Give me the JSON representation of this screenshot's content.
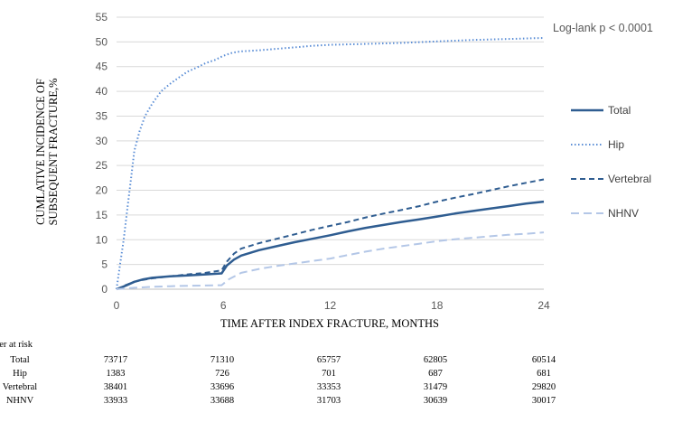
{
  "chart_data": {
    "type": "line",
    "title": "",
    "xlabel": "TIME AFTER INDEX FRACTURE, MONTHS",
    "ylabel": [
      "CUMLATIVE INCIDENCE OF",
      "SUBSEQUENT FRACTURE,%"
    ],
    "xlim": [
      0,
      24
    ],
    "ylim": [
      0,
      55
    ],
    "xticks": [
      0,
      6,
      12,
      18,
      24
    ],
    "yticks": [
      0,
      5,
      10,
      15,
      20,
      25,
      30,
      35,
      40,
      45,
      50,
      55
    ],
    "grid": "horizontal",
    "legend_position": "right",
    "annotation": "Log-lank p < 0.0001",
    "series": [
      {
        "name": "Total",
        "style": "solid",
        "color": "#2f5d91",
        "points": [
          [
            0,
            0
          ],
          [
            0.5,
            0.7
          ],
          [
            1,
            1.5
          ],
          [
            1.5,
            2.0
          ],
          [
            2,
            2.3
          ],
          [
            3,
            2.6
          ],
          [
            4,
            2.8
          ],
          [
            5,
            3.0
          ],
          [
            5.9,
            3.2
          ],
          [
            6.2,
            4.8
          ],
          [
            6.6,
            6.0
          ],
          [
            7,
            6.8
          ],
          [
            8,
            7.9
          ],
          [
            9,
            8.7
          ],
          [
            10,
            9.5
          ],
          [
            11,
            10.2
          ],
          [
            12,
            10.9
          ],
          [
            13,
            11.7
          ],
          [
            14,
            12.4
          ],
          [
            15,
            13.0
          ],
          [
            16,
            13.6
          ],
          [
            17,
            14.1
          ],
          [
            18,
            14.7
          ],
          [
            19,
            15.3
          ],
          [
            20,
            15.8
          ],
          [
            21,
            16.3
          ],
          [
            22,
            16.8
          ],
          [
            23,
            17.3
          ],
          [
            24,
            17.7
          ]
        ]
      },
      {
        "name": "Hip",
        "style": "dotted",
        "color": "#5b8ed6",
        "points": [
          [
            0,
            0
          ],
          [
            0.2,
            5
          ],
          [
            0.4,
            10
          ],
          [
            0.6,
            16
          ],
          [
            0.8,
            22
          ],
          [
            1,
            28
          ],
          [
            1.3,
            32
          ],
          [
            1.6,
            35
          ],
          [
            2,
            37.5
          ],
          [
            2.5,
            40
          ],
          [
            3,
            41.5
          ],
          [
            3.5,
            42.8
          ],
          [
            4,
            44
          ],
          [
            4.5,
            44.8
          ],
          [
            5,
            45.7
          ],
          [
            5.5,
            46.3
          ],
          [
            6,
            47.2
          ],
          [
            6.5,
            47.8
          ],
          [
            7,
            48.1
          ],
          [
            8,
            48.3
          ],
          [
            9,
            48.6
          ],
          [
            10,
            48.9
          ],
          [
            11,
            49.2
          ],
          [
            12,
            49.4
          ],
          [
            14,
            49.6
          ],
          [
            16,
            49.8
          ],
          [
            18,
            50.1
          ],
          [
            20,
            50.4
          ],
          [
            22,
            50.6
          ],
          [
            24,
            50.8
          ]
        ]
      },
      {
        "name": "Vertebral",
        "style": "dashed",
        "color": "#2f5d91",
        "points": [
          [
            0,
            0
          ],
          [
            0.5,
            0.8
          ],
          [
            1,
            1.5
          ],
          [
            1.5,
            1.9
          ],
          [
            2,
            2.2
          ],
          [
            3,
            2.6
          ],
          [
            4,
            3.0
          ],
          [
            5,
            3.3
          ],
          [
            5.9,
            3.8
          ],
          [
            6.2,
            5.6
          ],
          [
            6.6,
            7.2
          ],
          [
            7,
            8.2
          ],
          [
            8,
            9.3
          ],
          [
            9,
            10.2
          ],
          [
            10,
            11.1
          ],
          [
            11,
            12.0
          ],
          [
            12,
            12.8
          ],
          [
            13,
            13.6
          ],
          [
            14,
            14.5
          ],
          [
            15,
            15.3
          ],
          [
            16,
            16.0
          ],
          [
            17,
            16.8
          ],
          [
            18,
            17.7
          ],
          [
            19,
            18.5
          ],
          [
            20,
            19.2
          ],
          [
            21,
            20.0
          ],
          [
            22,
            20.8
          ],
          [
            23,
            21.5
          ],
          [
            24,
            22.2
          ]
        ]
      },
      {
        "name": "NHNV",
        "style": "longdash",
        "color": "#b4c7e7",
        "points": [
          [
            0,
            0
          ],
          [
            1,
            0.3
          ],
          [
            2,
            0.5
          ],
          [
            3,
            0.6
          ],
          [
            4,
            0.7
          ],
          [
            5,
            0.75
          ],
          [
            5.9,
            0.8
          ],
          [
            6.3,
            2.0
          ],
          [
            7,
            3.3
          ],
          [
            8,
            4.1
          ],
          [
            9,
            4.7
          ],
          [
            10,
            5.2
          ],
          [
            11,
            5.7
          ],
          [
            12,
            6.2
          ],
          [
            13,
            6.9
          ],
          [
            14,
            7.6
          ],
          [
            15,
            8.2
          ],
          [
            16,
            8.7
          ],
          [
            17,
            9.2
          ],
          [
            18,
            9.7
          ],
          [
            19,
            10.1
          ],
          [
            20,
            10.4
          ],
          [
            21,
            10.7
          ],
          [
            22,
            11.0
          ],
          [
            23,
            11.2
          ],
          [
            24,
            11.5
          ]
        ]
      }
    ],
    "risk_table": {
      "heading": "Number at risk",
      "rows": [
        {
          "label": "Total",
          "values": [
            "73717",
            "71310",
            "65757",
            "62805",
            "60514"
          ]
        },
        {
          "label": "Hip",
          "values": [
            "1383",
            "726",
            "701",
            "687",
            "681"
          ]
        },
        {
          "label": "Vertebral",
          "values": [
            "38401",
            "33696",
            "33353",
            "31479",
            "29820"
          ]
        },
        {
          "label": "NHNV",
          "values": [
            "33933",
            "33688",
            "31703",
            "30639",
            "30017"
          ]
        }
      ]
    }
  }
}
